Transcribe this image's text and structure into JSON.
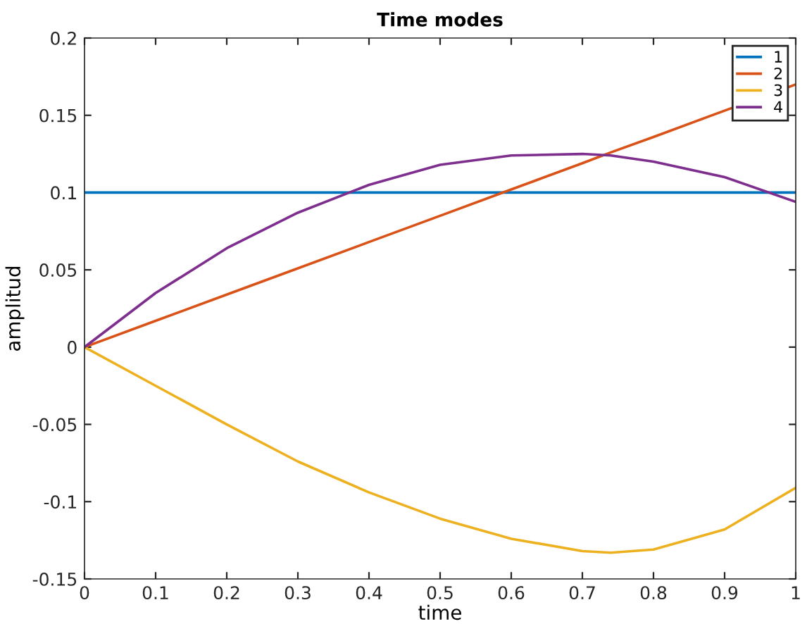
{
  "chart_data": {
    "type": "line",
    "title": "Time modes",
    "xlabel": "time",
    "ylabel": "amplitud",
    "xlim": [
      0,
      1
    ],
    "xticks": [
      0,
      0.1,
      0.2,
      0.3,
      0.4,
      0.5,
      0.6,
      0.7,
      0.8,
      0.9,
      1
    ],
    "ylim": [
      -0.15,
      0.2
    ],
    "yticks": [
      -0.15,
      -0.1,
      -0.05,
      0,
      0.05,
      0.1,
      0.15,
      0.2
    ],
    "grid": false,
    "legend": "top right",
    "marker": "none",
    "line_style": "solid",
    "x": [
      0,
      0.1,
      0.2,
      0.3,
      0.4,
      0.5,
      0.6,
      0.7,
      0.74,
      0.8,
      0.9,
      1
    ],
    "series": [
      {
        "name": "1",
        "color": "#0072bd",
        "values": [
          0.1,
          0.1,
          0.1,
          0.1,
          0.1,
          0.1,
          0.1,
          0.1,
          0.1,
          0.1,
          0.1,
          0.1
        ]
      },
      {
        "name": "2",
        "color": "#d95319",
        "values": [
          0,
          0.017,
          0.034,
          0.051,
          0.068,
          0.085,
          0.102,
          0.119,
          0.126,
          0.136,
          0.153,
          0.17
        ]
      },
      {
        "name": "3",
        "color": "#edb120",
        "values": [
          0,
          -0.025,
          -0.05,
          -0.074,
          -0.094,
          -0.111,
          -0.124,
          -0.132,
          -0.133,
          -0.131,
          -0.118,
          -0.091
        ]
      },
      {
        "name": "4",
        "color": "#7e2f8e",
        "values": [
          0,
          0.035,
          0.064,
          0.087,
          0.105,
          0.118,
          0.124,
          0.125,
          0.124,
          0.12,
          0.11,
          0.094
        ]
      }
    ]
  }
}
